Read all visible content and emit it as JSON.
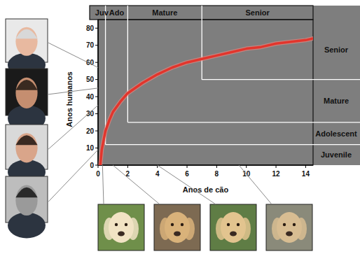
{
  "chart_data": {
    "type": "line",
    "x_label": "Anos de cão",
    "y_label": "Anos humanos",
    "x": [
      0.15,
      0.25,
      0.5,
      0.75,
      1,
      1.5,
      2,
      3,
      4,
      5,
      6,
      7,
      8,
      9,
      10,
      11,
      12,
      13,
      14,
      14.5
    ],
    "values": [
      0,
      9,
      20,
      26,
      31,
      37,
      42,
      48,
      53,
      57,
      60,
      62,
      64,
      66,
      68,
      69,
      71,
      72,
      73,
      74
    ],
    "color": "#e2352c",
    "xlim": [
      0,
      14.5
    ],
    "ylim": [
      0,
      85
    ],
    "xticks": [
      0,
      2,
      4,
      6,
      8,
      10,
      12,
      14
    ],
    "yticks": [
      0,
      10,
      20,
      30,
      40,
      50,
      60,
      70,
      80
    ],
    "dog_stages": [
      {
        "label": "Juv",
        "from": 0
      },
      {
        "label": "Ado",
        "from": 0.5
      },
      {
        "label": "Mature",
        "from": 2
      },
      {
        "label": "Senior",
        "from": 7
      }
    ],
    "human_stages": [
      {
        "label": "Juvenile",
        "from": 0
      },
      {
        "label": "Adolescent",
        "from": 12
      },
      {
        "label": "Mature",
        "from": 25
      },
      {
        "label": "Senior",
        "from": 50
      }
    ],
    "human_photo_ages": [
      57,
      45,
      35,
      9
    ],
    "dog_photo_ages": [
      0.3,
      1,
      4,
      9.5
    ]
  }
}
